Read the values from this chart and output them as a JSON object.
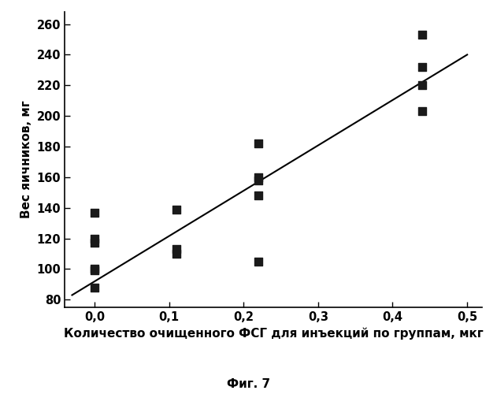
{
  "scatter_x": [
    0.0,
    0.0,
    0.0,
    0.0,
    0.0,
    0.0,
    0.11,
    0.11,
    0.11,
    0.22,
    0.22,
    0.22,
    0.22,
    0.22,
    0.44,
    0.44,
    0.44,
    0.44
  ],
  "scatter_y": [
    99,
    137,
    117,
    120,
    100,
    88,
    139,
    110,
    113,
    182,
    160,
    158,
    148,
    105,
    253,
    220,
    232,
    203
  ],
  "line_x": [
    -0.03,
    0.5
  ],
  "line_y": [
    83,
    240
  ],
  "xlabel": "Количество очищенного ФСГ для инъекций по группам, мкг",
  "ylabel": "Вес яичников, мг",
  "caption": "Фиг. 7",
  "xlim": [
    -0.04,
    0.52
  ],
  "ylim": [
    75,
    268
  ],
  "xticks": [
    0.0,
    0.1,
    0.2,
    0.3,
    0.4,
    0.5
  ],
  "xticklabels": [
    "0,0",
    "0,1",
    "0,2",
    "0,3",
    "0,4",
    "0,5"
  ],
  "yticks": [
    80,
    100,
    120,
    140,
    160,
    180,
    200,
    220,
    240,
    260
  ],
  "marker_size": 48,
  "line_color": "#000000",
  "marker_color": "#1a1a1a",
  "background_color": "#ffffff",
  "xlabel_fontsize": 11,
  "ylabel_fontsize": 11,
  "caption_fontsize": 11,
  "tick_fontsize": 10.5
}
